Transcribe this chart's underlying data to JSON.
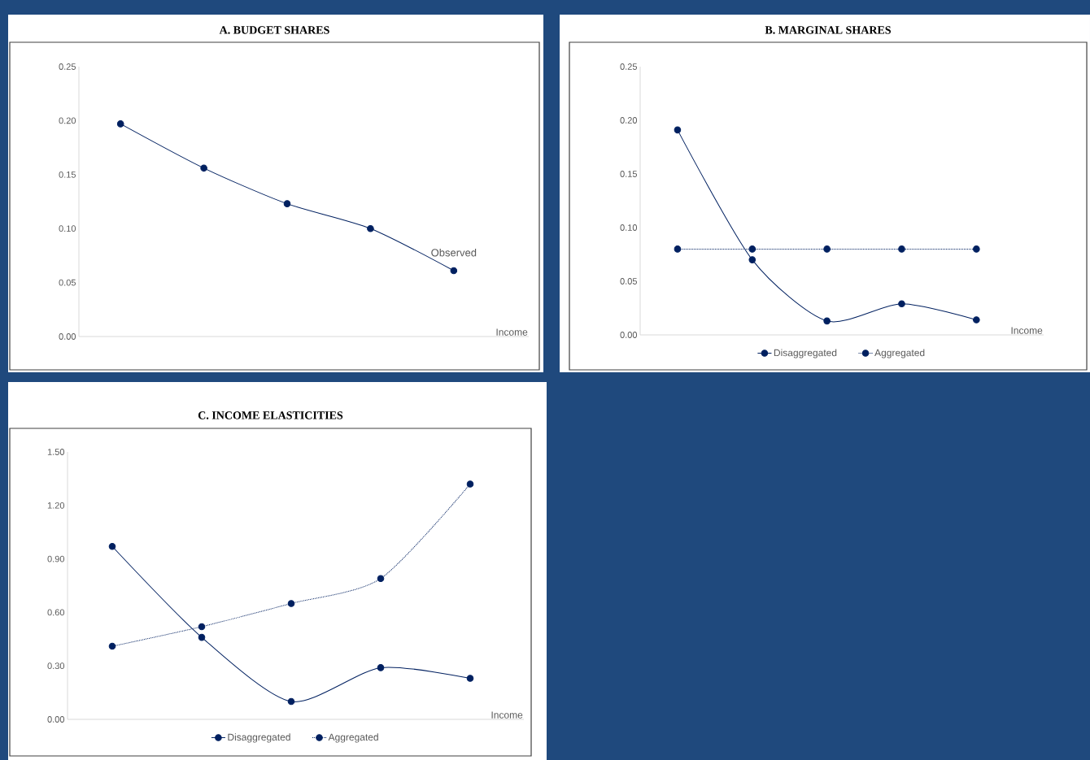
{
  "chart_data": [
    {
      "type": "line",
      "title": "A. BUDGET SHARES",
      "xlabel": "Income",
      "categories": [
        null,
        null,
        null,
        null,
        null
      ],
      "marker": "circle",
      "legend": false,
      "series": [
        {
          "name": "Observed",
          "color": "#002060",
          "line_style": "solid",
          "values": [
            0.197,
            0.156,
            0.123,
            0.1,
            0.061
          ]
        }
      ],
      "ylim": [
        0,
        0.25
      ],
      "yticks": [
        {
          "value": 0,
          "label": "0.00"
        },
        {
          "value": 0.05,
          "label": "0.05"
        },
        {
          "value": 0.1,
          "label": "0.10"
        },
        {
          "value": 0.15,
          "label": "0.15"
        },
        {
          "value": 0.2,
          "label": "0.20"
        },
        {
          "value": 0.25,
          "label": "0.25"
        }
      ]
    },
    {
      "type": "line",
      "title": "B. MARGINAL  SHARES",
      "xlabel": "Income",
      "categories": [
        null,
        null,
        null,
        null,
        null
      ],
      "marker": "circle",
      "legend": "bottom",
      "series": [
        {
          "name": "Disaggregated",
          "color": "#002060",
          "line_style": "solid",
          "values": [
            0.191,
            0.07,
            0.013,
            0.029,
            0.014
          ]
        },
        {
          "name": "Aggregated",
          "color": "#002060",
          "line_style": "dotted",
          "values": [
            0.08,
            0.08,
            0.08,
            0.08,
            0.08
          ]
        }
      ],
      "ylim": [
        0,
        0.25
      ],
      "yticks": [
        {
          "value": 0,
          "label": "0.00"
        },
        {
          "value": 0.05,
          "label": "0.05"
        },
        {
          "value": 0.1,
          "label": "0.10"
        },
        {
          "value": 0.15,
          "label": "0.15"
        },
        {
          "value": 0.2,
          "label": "0.20"
        },
        {
          "value": 0.25,
          "label": "0.25"
        }
      ]
    },
    {
      "type": "line",
      "title": "C. INCOME ELASTICITIES",
      "xlabel": "Income",
      "categories": [
        null,
        null,
        null,
        null,
        null
      ],
      "marker": "circle",
      "legend": "bottom",
      "series": [
        {
          "name": "Disaggregated",
          "color": "#002060",
          "line_style": "solid",
          "values": [
            0.97,
            0.46,
            0.1,
            0.29,
            0.23
          ]
        },
        {
          "name": "Aggregated",
          "color": "#002060",
          "line_style": "dotted",
          "values": [
            0.41,
            0.52,
            0.65,
            0.79,
            1.32
          ]
        }
      ],
      "ylim": [
        0,
        1.5
      ],
      "yticks": [
        {
          "value": 0,
          "label": "0.00"
        },
        {
          "value": 0.3,
          "label": "0.30"
        },
        {
          "value": 0.6,
          "label": "0.60"
        },
        {
          "value": 0.9,
          "label": "0.90"
        },
        {
          "value": 1.2,
          "label": "1.20"
        },
        {
          "value": 1.5,
          "label": "1.50"
        }
      ]
    }
  ]
}
